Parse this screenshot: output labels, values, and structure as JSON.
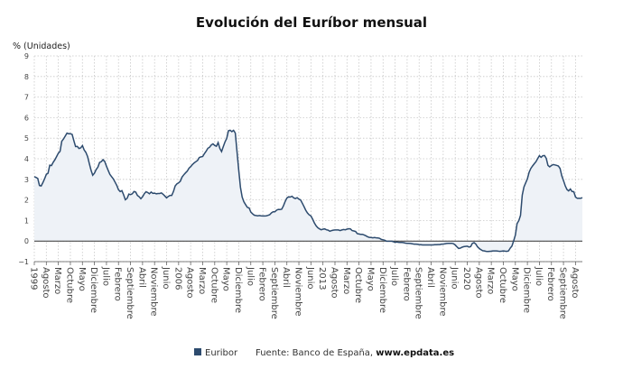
{
  "title": "Evolución del Euríbor mensual",
  "legend": {
    "series_label": "Euribor",
    "source_prefix": "Fuente: Banco de España, ",
    "source_site": "www.epdata.es"
  },
  "chart_data": {
    "type": "area",
    "title": "Evolución del Euríbor mensual",
    "ylabel": "% (Unidades)",
    "ylim": [
      -1,
      9
    ],
    "yticks": [
      -1,
      0,
      1,
      2,
      3,
      4,
      5,
      6,
      7,
      8,
      9
    ],
    "grid": true,
    "legend_placement": "bottom",
    "x_start": "1999-01",
    "x_end": "2025-08",
    "xtick_labels": [
      "1999",
      "Agosto",
      "Marzo",
      "Octubre",
      "Mayo",
      "Diciembre",
      "Julio",
      "Febrero",
      "Septiembre",
      "Abril",
      "Noviembre",
      "Junio",
      "2006",
      "Agosto",
      "Marzo",
      "Octubre",
      "Mayo",
      "Diciembre",
      "Julio",
      "Febrero",
      "Septiembre",
      "Abril",
      "Noviembre",
      "Junio",
      "2013",
      "Agosto",
      "Marzo",
      "Octubre",
      "Mayo",
      "Diciembre",
      "Julio",
      "Febrero",
      "Septiembre",
      "Abril",
      "Noviembre",
      "Junio",
      "2020",
      "Agosto",
      "Marzo",
      "Octubre",
      "Mayo",
      "Diciembre",
      "Julio",
      "Febrero",
      "Septiembre",
      "Agosto"
    ],
    "colors": {
      "line": "#2d4b6e",
      "fill": "#eef2f7",
      "zero_line": "#333333",
      "grid": "#c8c8c8"
    },
    "series": [
      {
        "name": "Euribor",
        "values": [
          3.13,
          3.09,
          3.05,
          2.7,
          2.68,
          2.84,
          3.03,
          3.24,
          3.3,
          3.69,
          3.67,
          3.83,
          3.95,
          4.11,
          4.27,
          4.36,
          4.85,
          4.96,
          5.11,
          5.25,
          5.22,
          5.22,
          5.19,
          4.88,
          4.59,
          4.6,
          4.5,
          4.53,
          4.64,
          4.43,
          4.31,
          4.11,
          3.77,
          3.45,
          3.2,
          3.3,
          3.48,
          3.59,
          3.82,
          3.86,
          3.96,
          3.87,
          3.64,
          3.44,
          3.24,
          3.13,
          3.02,
          2.87,
          2.71,
          2.5,
          2.41,
          2.45,
          2.25,
          2.01,
          2.08,
          2.28,
          2.26,
          2.3,
          2.41,
          2.38,
          2.22,
          2.16,
          2.06,
          2.16,
          2.3,
          2.4,
          2.36,
          2.3,
          2.38,
          2.32,
          2.33,
          2.3,
          2.31,
          2.31,
          2.34,
          2.27,
          2.19,
          2.1,
          2.17,
          2.22,
          2.22,
          2.41,
          2.68,
          2.78,
          2.83,
          2.91,
          3.11,
          3.22,
          3.31,
          3.4,
          3.54,
          3.62,
          3.72,
          3.8,
          3.86,
          3.92,
          4.06,
          4.09,
          4.11,
          4.25,
          4.37,
          4.51,
          4.56,
          4.67,
          4.73,
          4.65,
          4.61,
          4.79,
          4.5,
          4.35,
          4.59,
          4.82,
          4.99,
          5.36,
          5.39,
          5.32,
          5.38,
          5.25,
          4.35,
          3.45,
          2.62,
          2.14,
          1.91,
          1.77,
          1.64,
          1.61,
          1.41,
          1.33,
          1.26,
          1.24,
          1.23,
          1.24,
          1.23,
          1.22,
          1.22,
          1.23,
          1.25,
          1.28,
          1.37,
          1.42,
          1.42,
          1.5,
          1.54,
          1.53,
          1.55,
          1.71,
          1.92,
          2.09,
          2.15,
          2.14,
          2.18,
          2.1,
          2.07,
          2.11,
          2.04,
          2.0,
          1.84,
          1.68,
          1.5,
          1.37,
          1.27,
          1.22,
          1.06,
          0.88,
          0.74,
          0.65,
          0.59,
          0.55,
          0.58,
          0.59,
          0.55,
          0.53,
          0.48,
          0.51,
          0.53,
          0.54,
          0.54,
          0.54,
          0.51,
          0.54,
          0.56,
          0.55,
          0.58,
          0.6,
          0.59,
          0.51,
          0.49,
          0.47,
          0.36,
          0.34,
          0.33,
          0.33,
          0.3,
          0.26,
          0.21,
          0.18,
          0.17,
          0.16,
          0.17,
          0.16,
          0.15,
          0.13,
          0.08,
          0.06,
          0.04,
          -0.01,
          -0.01,
          -0.01,
          -0.01,
          -0.03,
          -0.06,
          -0.05,
          -0.06,
          -0.07,
          -0.07,
          -0.08,
          -0.1,
          -0.11,
          -0.11,
          -0.12,
          -0.13,
          -0.15,
          -0.15,
          -0.16,
          -0.17,
          -0.18,
          -0.19,
          -0.19,
          -0.19,
          -0.19,
          -0.19,
          -0.19,
          -0.19,
          -0.18,
          -0.18,
          -0.17,
          -0.17,
          -0.15,
          -0.15,
          -0.13,
          -0.12,
          -0.11,
          -0.11,
          -0.11,
          -0.13,
          -0.19,
          -0.28,
          -0.36,
          -0.34,
          -0.3,
          -0.27,
          -0.26,
          -0.25,
          -0.29,
          -0.27,
          -0.11,
          -0.08,
          -0.15,
          -0.28,
          -0.36,
          -0.42,
          -0.47,
          -0.48,
          -0.5,
          -0.51,
          -0.5,
          -0.49,
          -0.48,
          -0.48,
          -0.48,
          -0.49,
          -0.5,
          -0.49,
          -0.48,
          -0.49,
          -0.5,
          -0.48,
          -0.34,
          -0.24,
          0.01,
          0.29,
          0.85,
          0.99,
          1.25,
          2.23,
          2.63,
          2.83,
          3.02,
          3.34,
          3.53,
          3.65,
          3.76,
          3.86,
          4.01,
          4.15,
          4.07,
          4.15,
          4.16,
          4.02,
          3.68,
          3.61,
          3.67,
          3.72,
          3.7,
          3.68,
          3.65,
          3.53,
          3.17,
          2.94,
          2.69,
          2.51,
          2.44,
          2.53,
          2.41,
          2.4,
          2.14,
          2.08,
          2.08,
          2.08,
          2.11
        ]
      }
    ]
  }
}
